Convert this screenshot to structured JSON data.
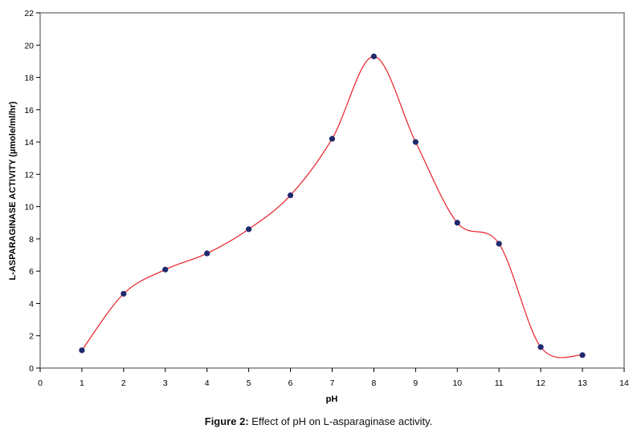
{
  "chart_data": {
    "type": "line",
    "title": "",
    "xlabel": "pH",
    "ylabel": "L-ASPARAGINASE ACTIVITY (µmole/ml/hr)",
    "xlim": [
      0,
      14
    ],
    "ylim": [
      0,
      22
    ],
    "xticks": [
      0,
      1,
      2,
      3,
      4,
      5,
      6,
      7,
      8,
      9,
      10,
      11,
      12,
      13,
      14
    ],
    "yticks": [
      0,
      2,
      4,
      6,
      8,
      10,
      12,
      14,
      16,
      18,
      20,
      22
    ],
    "grid": false,
    "series": [
      {
        "name": "L-asparaginase activity",
        "x": [
          1,
          2,
          3,
          4,
          5,
          6,
          7,
          8,
          9,
          10,
          11,
          12,
          13
        ],
        "y": [
          1.1,
          4.6,
          6.1,
          7.1,
          8.6,
          10.7,
          14.2,
          19.3,
          14.0,
          9.0,
          7.7,
          1.3,
          0.8
        ],
        "line_color": "#e8202a",
        "marker_color": "#1f2a6e",
        "smooth": true
      }
    ]
  },
  "caption": {
    "label": "Figure 2:",
    "text": " Effect of pH on L-asparaginase activity."
  }
}
